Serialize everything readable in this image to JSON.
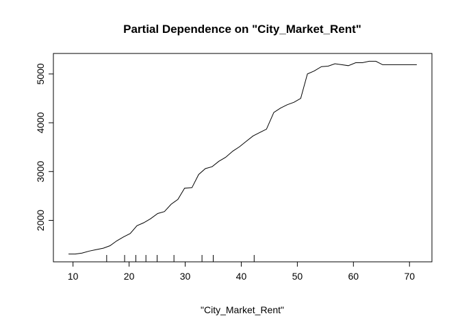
{
  "chart_data": {
    "type": "line",
    "title": "Partial Dependence on \"City_Market_Rent\"",
    "xlabel": "\"City_Market_Rent\"",
    "ylabel": "",
    "xlim": [
      6.5,
      74
    ],
    "ylim": [
      1150,
      5420
    ],
    "x_ticks": [
      10,
      20,
      30,
      40,
      50,
      60,
      70
    ],
    "y_ticks": [
      2000,
      3000,
      4000,
      5000
    ],
    "grid": false,
    "legend": "none",
    "line_color": "#000000",
    "series": [
      {
        "x": [
          9.2,
          10.4,
          11.6,
          12.9,
          14.1,
          15.4,
          16.6,
          17.8,
          19.0,
          20.2,
          21.4,
          22.6,
          23.8,
          25.1,
          26.3,
          27.5,
          28.7,
          29.9,
          31.2,
          32.4,
          33.6,
          34.8,
          36.0,
          37.2,
          38.5,
          39.7,
          40.9,
          42.1,
          43.3,
          44.5,
          45.8,
          47.0,
          48.2,
          49.4,
          50.6,
          51.8,
          53.0,
          54.3,
          55.5,
          56.7,
          57.9,
          59.1,
          60.4,
          61.6,
          62.8,
          64.0,
          65.2,
          66.4,
          67.7,
          68.9,
          70.1,
          71.3
        ],
        "y": [
          1310,
          1310,
          1330,
          1370,
          1400,
          1430,
          1480,
          1580,
          1660,
          1730,
          1890,
          1950,
          2030,
          2140,
          2180,
          2330,
          2430,
          2660,
          2670,
          2940,
          3060,
          3100,
          3210,
          3290,
          3420,
          3510,
          3620,
          3730,
          3800,
          3870,
          4210,
          4300,
          4370,
          4420,
          4500,
          5000,
          5060,
          5150,
          5160,
          5210,
          5190,
          5170,
          5230,
          5230,
          5260,
          5260,
          5190,
          5190,
          5190,
          5190,
          5190,
          5190
        ]
      }
    ],
    "rug": [
      16.0,
      19.2,
      21.2,
      23.0,
      25.0,
      28.0,
      33.0,
      35.0,
      42.3
    ]
  }
}
